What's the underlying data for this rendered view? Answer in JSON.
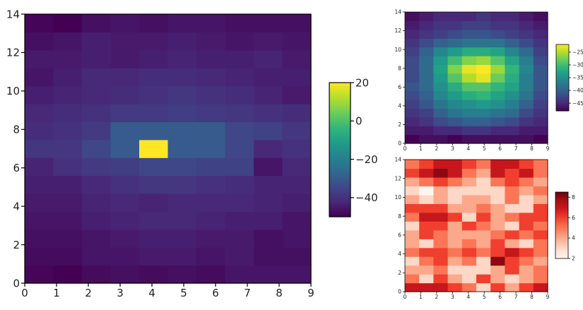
{
  "colors": {
    "background": "#ffffff",
    "axis": "#000000",
    "viridis_stops": [
      "#440154",
      "#482878",
      "#3e4989",
      "#31688e",
      "#26828e",
      "#1f9e89",
      "#35b779",
      "#6ece58",
      "#b5de2b",
      "#fde725"
    ],
    "reds_stops": [
      "#fff5f0",
      "#fee0d2",
      "#fcbba1",
      "#fc9272",
      "#fb6a4a",
      "#ef3b2c",
      "#cb181d",
      "#a50f15",
      "#67000d"
    ]
  },
  "chart_data": [
    {
      "id": "main-heatmap",
      "type": "heatmap",
      "colormap": "viridis",
      "title": "",
      "xlabel": "",
      "ylabel": "",
      "xlim": [
        0,
        9
      ],
      "ylim": [
        0,
        14
      ],
      "xticks": [
        "0",
        "1",
        "2",
        "3",
        "4",
        "5",
        "6",
        "7",
        "8",
        "9"
      ],
      "yticks": [
        "0",
        "2",
        "4",
        "6",
        "8",
        "10",
        "12",
        "14"
      ],
      "ytick_values": [
        0,
        2,
        4,
        6,
        8,
        10,
        12,
        14
      ],
      "clim": [
        -50,
        20
      ],
      "colorbar_ticks": [
        "20",
        "0",
        "−20",
        "−40"
      ],
      "colorbar_tick_values": [
        20,
        0,
        -20,
        -40
      ],
      "z_rows_bottom_to_top": [
        [
          -49,
          -50,
          -48,
          -47,
          -48,
          -47,
          -48,
          -46,
          -46,
          -46
        ],
        [
          -48,
          -48,
          -46,
          -46,
          -45,
          -45,
          -46,
          -45,
          -47,
          -47
        ],
        [
          -47,
          -47,
          -46,
          -45,
          -44,
          -44,
          -45,
          -45,
          -47,
          -46
        ],
        [
          -46,
          -46,
          -44,
          -43,
          -42,
          -42,
          -43,
          -44,
          -44,
          -46
        ],
        [
          -45,
          -45,
          -43,
          -42,
          -43,
          -42,
          -42,
          -42,
          -43,
          -44
        ],
        [
          -44,
          -44,
          -42,
          -40,
          -39,
          -39,
          -40,
          -41,
          -43,
          -43
        ],
        [
          -43,
          -40,
          -38,
          -37,
          -35,
          -35,
          -36,
          -36,
          -46,
          -42
        ],
        [
          -39,
          -39,
          -35,
          -30,
          20,
          -30,
          -30,
          -35,
          -42,
          -40
        ],
        [
          -41,
          -40,
          -38,
          -30,
          -30,
          -30,
          -30,
          -35,
          -36,
          -39
        ],
        [
          -42,
          -41,
          -40,
          -38,
          -38,
          -37,
          -38,
          -39,
          -40,
          -41
        ],
        [
          -44,
          -43,
          -42,
          -41,
          -40,
          -39,
          -40,
          -41,
          -43,
          -45
        ],
        [
          -46,
          -44,
          -42,
          -42,
          -41,
          -41,
          -42,
          -43,
          -44,
          -44
        ],
        [
          -45,
          -45,
          -44,
          -45,
          -44,
          -43,
          -44,
          -44,
          -43,
          -45
        ],
        [
          -47,
          -46,
          -44,
          -45,
          -45,
          -44,
          -45,
          -46,
          -45,
          -46
        ],
        [
          -49,
          -50,
          -47,
          -46,
          -47,
          -46,
          -46,
          -47,
          -47,
          -47
        ]
      ]
    },
    {
      "id": "top-right-heatmap",
      "type": "heatmap",
      "colormap": "viridis",
      "title": "",
      "xlabel": "",
      "ylabel": "",
      "xlim": [
        0,
        9
      ],
      "ylim": [
        0,
        14
      ],
      "xticks": [
        "0",
        "1",
        "2",
        "3",
        "4",
        "5",
        "6",
        "7",
        "8",
        "9"
      ],
      "yticks": [
        "0",
        "2",
        "4",
        "6",
        "8",
        "10",
        "12",
        "14"
      ],
      "ytick_values": [
        0,
        2,
        4,
        6,
        8,
        10,
        12,
        14
      ],
      "clim": [
        -48,
        -22
      ],
      "colorbar_ticks": [
        "−25",
        "−30",
        "−35",
        "−40",
        "−45"
      ],
      "colorbar_tick_values": [
        -25,
        -30,
        -35,
        -40,
        -45
      ],
      "z_rows_bottom_to_top": [
        [
          -48,
          -47,
          -47,
          -48,
          -47,
          -47,
          -47,
          -47,
          -47,
          -48
        ],
        [
          -46,
          -46,
          -45,
          -45,
          -44,
          -44,
          -45,
          -45,
          -46,
          -46
        ],
        [
          -45,
          -44,
          -42,
          -41,
          -40,
          -40,
          -41,
          -42,
          -44,
          -45
        ],
        [
          -44,
          -43,
          -40,
          -38,
          -37,
          -37,
          -38,
          -39,
          -42,
          -44
        ],
        [
          -43,
          -41,
          -38,
          -36,
          -35,
          -34,
          -35,
          -37,
          -40,
          -43
        ],
        [
          -42,
          -40,
          -36,
          -34,
          -32,
          -31,
          -33,
          -35,
          -38,
          -42
        ],
        [
          -41,
          -39,
          -35,
          -32,
          -29,
          -29,
          -31,
          -33,
          -37,
          -41
        ],
        [
          -42,
          -39,
          -34,
          -29,
          -25,
          -23,
          -28,
          -32,
          -37,
          -41
        ],
        [
          -42,
          -39,
          -33,
          -27,
          -23,
          -22,
          -26,
          -31,
          -36,
          -41
        ],
        [
          -42,
          -39,
          -34,
          -30,
          -27,
          -26,
          -29,
          -33,
          -37,
          -42
        ],
        [
          -43,
          -40,
          -36,
          -34,
          -32,
          -32,
          -33,
          -36,
          -39,
          -43
        ],
        [
          -44,
          -42,
          -40,
          -39,
          -38,
          -38,
          -38,
          -40,
          -42,
          -44
        ],
        [
          -45,
          -44,
          -43,
          -42,
          -41,
          -41,
          -42,
          -43,
          -44,
          -45
        ],
        [
          -46,
          -45,
          -44,
          -44,
          -43,
          -43,
          -44,
          -44,
          -45,
          -46
        ],
        [
          -47,
          -46,
          -45,
          -45,
          -45,
          -44,
          -45,
          -45,
          -46,
          -47
        ]
      ]
    },
    {
      "id": "bottom-right-heatmap",
      "type": "heatmap",
      "colormap": "Reds",
      "title": "",
      "xlabel": "",
      "ylabel": "",
      "xlim": [
        0,
        9
      ],
      "ylim": [
        0,
        14
      ],
      "xticks": [
        "0",
        "1",
        "2",
        "3",
        "4",
        "5",
        "6",
        "7",
        "8",
        "9"
      ],
      "yticks": [
        "0",
        "2",
        "4",
        "6",
        "8",
        "10",
        "12",
        "14"
      ],
      "ytick_values": [
        0,
        2,
        4,
        6,
        8,
        10,
        12,
        14
      ],
      "clim": [
        2,
        8.5
      ],
      "colorbar_ticks": [
        "8",
        "6",
        "4",
        "2"
      ],
      "colorbar_tick_values": [
        8,
        6,
        4,
        2
      ],
      "z_rows_bottom_to_top": [
        [
          7,
          7,
          7,
          6,
          5,
          3,
          6,
          4,
          6,
          7
        ],
        [
          5,
          3,
          6,
          4,
          3,
          6,
          4,
          3,
          4,
          5
        ],
        [
          4,
          4,
          5,
          3,
          3,
          3,
          4,
          6,
          4,
          5
        ],
        [
          3,
          5,
          6,
          4,
          5,
          3,
          8,
          6,
          5,
          4
        ],
        [
          5,
          6,
          6,
          5,
          6,
          5,
          6,
          7,
          6,
          5
        ],
        [
          4,
          3,
          5,
          4,
          5,
          4,
          6,
          4,
          3,
          5
        ],
        [
          4,
          6,
          5,
          4,
          4,
          4,
          5,
          6,
          5,
          6
        ],
        [
          3,
          6,
          6,
          4,
          6,
          5,
          4,
          3,
          6,
          5
        ],
        [
          5,
          7,
          7,
          6,
          3,
          6,
          4,
          5,
          6,
          6
        ],
        [
          6,
          6,
          6,
          4,
          4,
          5,
          4,
          3,
          3,
          6
        ],
        [
          4,
          3,
          4,
          3,
          4,
          4,
          3,
          5,
          3,
          4
        ],
        [
          3,
          2,
          4,
          3,
          3,
          3,
          3,
          5,
          4,
          5
        ],
        [
          4,
          5,
          6,
          5,
          4,
          3,
          5,
          6,
          5,
          4
        ],
        [
          6,
          7,
          8,
          7,
          5,
          4,
          7,
          6,
          7,
          5
        ],
        [
          5,
          6,
          7,
          7,
          6,
          5,
          7,
          7,
          6,
          5
        ]
      ]
    }
  ]
}
